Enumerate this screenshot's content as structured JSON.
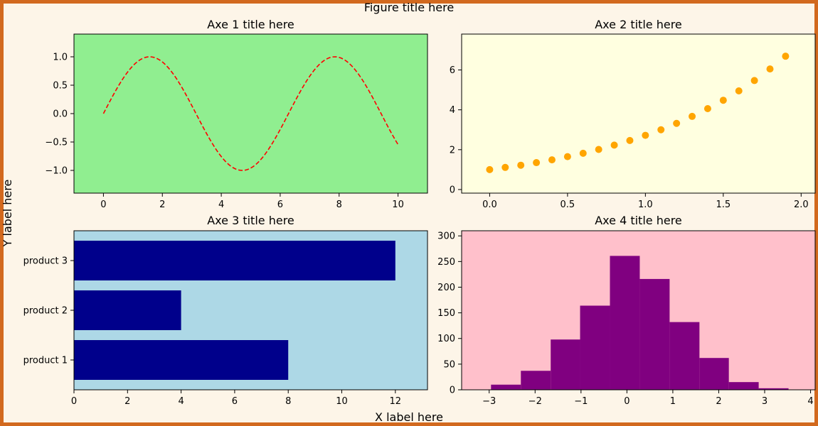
{
  "figure": {
    "title": "Figure title here",
    "xlabel": "X label here",
    "ylabel": "Y label here",
    "background": "#fdf5e8",
    "border_color": "#d2691e"
  },
  "chart_data": [
    {
      "type": "line",
      "title": "Axe 1 title here",
      "function": "sin(x)",
      "x_range": [
        0,
        10
      ],
      "xlim": [
        -1,
        11
      ],
      "ylim": [
        -1.4,
        1.4
      ],
      "xticks": [
        0,
        2,
        4,
        6,
        8,
        10
      ],
      "yticks": [
        -1.0,
        -0.5,
        0.0,
        0.5,
        1.0
      ],
      "line_color": "#ff0000",
      "line_style": "dashed",
      "background": "#90ee90",
      "grid": false
    },
    {
      "type": "scatter",
      "title": "Axe 2 title here",
      "x": [
        0.0,
        0.1,
        0.2,
        0.3,
        0.4,
        0.5,
        0.6,
        0.7,
        0.8,
        0.9,
        1.0,
        1.1,
        1.2,
        1.3,
        1.4,
        1.5,
        1.6,
        1.7,
        1.8,
        1.9
      ],
      "y": [
        1.0,
        1.11,
        1.22,
        1.35,
        1.49,
        1.65,
        1.82,
        2.01,
        2.23,
        2.46,
        2.72,
        3.0,
        3.32,
        3.67,
        4.06,
        4.48,
        4.95,
        5.47,
        6.05,
        6.69
      ],
      "xlim": [
        -0.18,
        2.09
      ],
      "ylim": [
        -0.18,
        7.8
      ],
      "xticks": [
        0.0,
        0.5,
        1.0,
        1.5,
        2.0
      ],
      "yticks": [
        0,
        2,
        4,
        6
      ],
      "marker_color": "#ffa500",
      "background": "#ffffe0",
      "grid": false
    },
    {
      "type": "bar",
      "orientation": "horizontal",
      "title": "Axe 3 title here",
      "categories": [
        "product 1",
        "product 2",
        "product 3"
      ],
      "values": [
        8,
        4,
        12
      ],
      "xlim": [
        0,
        13.2
      ],
      "xticks": [
        0,
        2,
        4,
        6,
        8,
        10,
        12
      ],
      "bar_color": "#00008b",
      "background": "#add8e6",
      "grid": false
    },
    {
      "type": "bar",
      "subtype": "histogram",
      "title": "Axe 4 title here",
      "bin_edges": [
        -2.96,
        -2.31,
        -1.66,
        -1.02,
        -0.37,
        0.28,
        0.93,
        1.58,
        2.22,
        2.87,
        3.52
      ],
      "counts": [
        10,
        37,
        98,
        164,
        261,
        216,
        132,
        62,
        15,
        3
      ],
      "xlim": [
        -3.6,
        4.1
      ],
      "ylim": [
        0,
        310
      ],
      "xticks": [
        -3,
        -2,
        -1,
        0,
        1,
        2,
        3,
        4
      ],
      "yticks": [
        0,
        50,
        100,
        150,
        200,
        250,
        300
      ],
      "bar_color": "#800080",
      "background": "#ffc0cb",
      "grid": false
    }
  ]
}
